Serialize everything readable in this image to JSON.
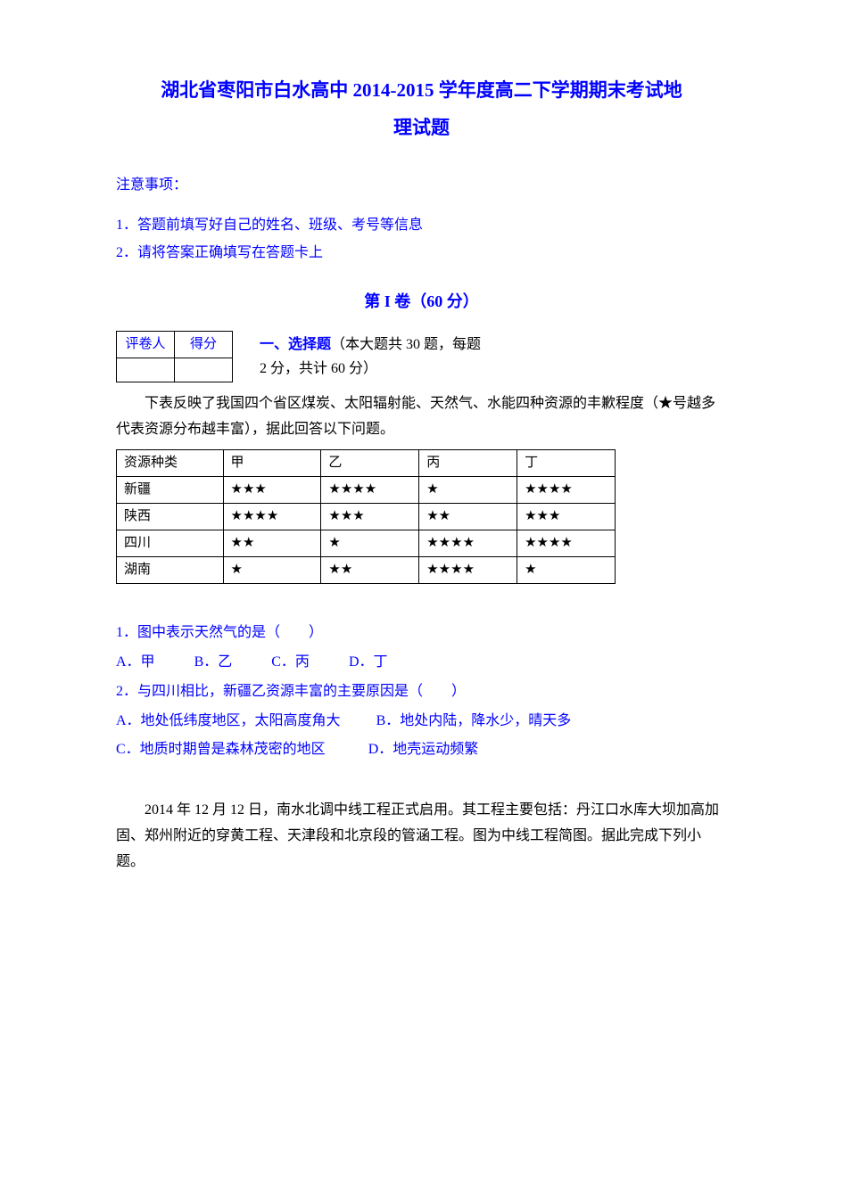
{
  "title_line1": "湖北省枣阳市白水高中 2014-2015 学年度高二下学期期末考试地",
  "title_line2": "理试题",
  "notice": {
    "heading": "注意事项：",
    "items": [
      "1．答题前填写好自己的姓名、班级、考号等信息",
      "2．请将答案正确填写在答题卡上"
    ]
  },
  "section1": {
    "header": "第 I 卷（60 分）",
    "score_table_headers": [
      "评卷人",
      "得分"
    ],
    "label": "一、选择题",
    "desc1": "（本大题共 30 题，每题",
    "desc2": "2 分，共计 60 分）"
  },
  "passage1": {
    "intro": "下表反映了我国四个省区煤炭、太阳辐射能、天然气、水能四种资源的丰歉程度（★号越多代表资源分布越丰富），据此回答以下问题。",
    "table": {
      "columns": [
        "资源种类",
        "甲",
        "乙",
        "丙",
        "丁"
      ],
      "rows": [
        {
          "region": "新疆",
          "cells": [
            "★★★",
            "★★★★",
            "★",
            "★★★★"
          ]
        },
        {
          "region": "陕西",
          "cells": [
            "★★★★",
            "★★★",
            "★★",
            "★★★"
          ]
        },
        {
          "region": "四川",
          "cells": [
            "★★",
            "★",
            "★★★★",
            "★★★★"
          ]
        },
        {
          "region": "湖南",
          "cells": [
            "★",
            "★★",
            "★★★★",
            "★"
          ]
        }
      ]
    }
  },
  "q1": {
    "stem": "1．图中表示天然气的是（　　）",
    "choices": [
      "A．甲",
      "B．乙",
      "C．丙",
      "D．丁"
    ]
  },
  "q2": {
    "stem": "2．与四川相比，新疆乙资源丰富的主要原因是（　　）",
    "choices_row1": [
      "A．地处低纬度地区，太阳高度角大",
      "B．地处内陆，降水少，晴天多"
    ],
    "choices_row2": [
      "C．地质时期曾是森林茂密的地区",
      "D．地壳运动频繁"
    ]
  },
  "passage2": {
    "text": "2014 年 12 月 12 日，南水北调中线工程正式启用。其工程主要包括：丹江口水库大坝加高加固、郑州附近的穿黄工程、天津段和北京段的管涵工程。图为中线工程简图。据此完成下列小题。"
  },
  "colors": {
    "primary": "#0000ff",
    "text": "#000000",
    "background": "#ffffff",
    "border": "#000000"
  }
}
